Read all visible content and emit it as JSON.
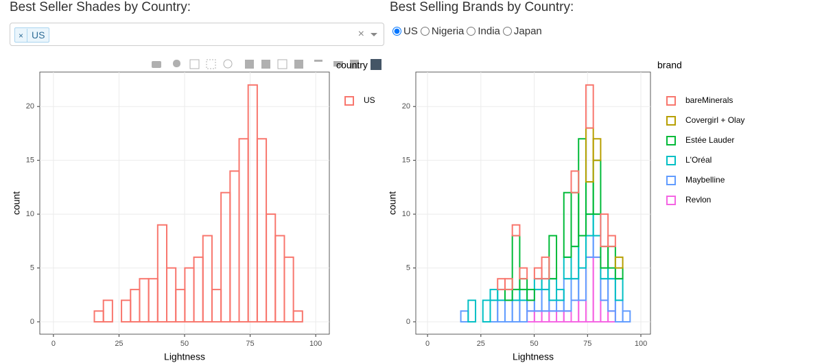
{
  "left_panel": {
    "title": "Best Seller Shades by Country:",
    "selected": [
      "US"
    ]
  },
  "right_panel": {
    "title": "Best Selling Brands by Country:",
    "options": [
      "US",
      "Nigeria",
      "India",
      "Japan"
    ],
    "selected": "US"
  },
  "chart_data": [
    {
      "type": "histogram",
      "x_label": "Lightness",
      "y_label": "count",
      "legend_title": "country",
      "bins": [
        1.8,
        5.25,
        8.7,
        12.15,
        15.6,
        19.05,
        22.5,
        25.95,
        29.4,
        32.85,
        36.3,
        39.75,
        43.2,
        46.65,
        50.1,
        53.55,
        57,
        60.45,
        63.9,
        67.35,
        70.8,
        74.25,
        77.7,
        81.15,
        84.6,
        88.05,
        91.5,
        94.95,
        98.4
      ],
      "series": [
        {
          "name": "US",
          "color": "#F8766D",
          "values": [
            0,
            0,
            0,
            0,
            1,
            2,
            0,
            2,
            3,
            4,
            4,
            9,
            5,
            3,
            5,
            6,
            8,
            3,
            12,
            14,
            17,
            22,
            17,
            10,
            8,
            6,
            1,
            0
          ]
        }
      ],
      "xlim": [
        -5.2,
        105.2
      ],
      "ylim": [
        -1.15,
        23.2
      ],
      "xticks": [
        0,
        25,
        50,
        75,
        100
      ],
      "yticks": [
        0,
        5,
        10,
        15,
        20
      ],
      "grid": true
    },
    {
      "type": "histogram",
      "stacked": true,
      "x_label": "Lightness",
      "y_label": "count",
      "legend_title": "brand",
      "bins": [
        1.8,
        5.25,
        8.7,
        12.15,
        15.6,
        19.05,
        22.5,
        25.95,
        29.4,
        32.85,
        36.3,
        39.75,
        43.2,
        46.65,
        50.1,
        53.55,
        57,
        60.45,
        63.9,
        67.35,
        70.8,
        74.25,
        77.7,
        81.15,
        84.6,
        88.05,
        91.5,
        94.95,
        98.4
      ],
      "series": [
        {
          "name": "Revlon",
          "color": "#F564E3",
          "values": [
            0,
            0,
            0,
            0,
            0,
            0,
            0,
            0,
            0,
            0,
            0,
            0,
            0,
            1,
            1,
            1,
            1,
            1,
            1,
            2,
            2,
            6,
            6,
            2,
            1,
            0,
            0,
            0
          ]
        },
        {
          "name": "Maybelline",
          "color": "#619CFF",
          "values": [
            0,
            0,
            0,
            0,
            1,
            0,
            0,
            0,
            2,
            2,
            2,
            2,
            2,
            1,
            2,
            2,
            1,
            1,
            3,
            2,
            3,
            2,
            2,
            2,
            3,
            2,
            1,
            0
          ]
        },
        {
          "name": "L'Oréal",
          "color": "#00BFC4",
          "values": [
            0,
            0,
            0,
            0,
            0,
            2,
            0,
            2,
            1,
            1,
            0,
            1,
            1,
            0,
            1,
            1,
            2,
            1,
            2,
            3,
            3,
            2,
            2,
            1,
            1,
            2,
            0,
            0
          ]
        },
        {
          "name": "Estée Lauder",
          "color": "#00BA38",
          "values": [
            0,
            0,
            0,
            0,
            0,
            0,
            0,
            0,
            0,
            0,
            1,
            5,
            1,
            1,
            0,
            0,
            4,
            0,
            6,
            5,
            9,
            3,
            5,
            2,
            2,
            1,
            0,
            0
          ]
        },
        {
          "name": "Covergirl + Olay",
          "color": "#B79F00",
          "values": [
            0,
            0,
            0,
            0,
            0,
            0,
            0,
            0,
            0,
            0,
            0,
            0,
            0,
            0,
            0,
            0,
            0,
            0,
            0,
            0,
            0,
            5,
            2,
            0,
            0,
            1,
            0,
            0
          ]
        },
        {
          "name": "bareMinerals",
          "color": "#F8766D",
          "values": [
            0,
            0,
            0,
            0,
            0,
            0,
            0,
            0,
            0,
            1,
            1,
            1,
            1,
            0,
            1,
            2,
            0,
            0,
            0,
            2,
            0,
            4,
            0,
            3,
            1,
            0,
            0,
            0
          ]
        }
      ],
      "legend_order": [
        "bareMinerals",
        "Covergirl + Olay",
        "Estée Lauder",
        "L'Oréal",
        "Maybelline",
        "Revlon"
      ],
      "xlim": [
        -5.5,
        104.5
      ],
      "ylim": [
        -1.15,
        23.2
      ],
      "xticks": [
        0,
        25,
        50,
        75,
        100
      ],
      "yticks": [
        0,
        5,
        10,
        15,
        20
      ],
      "grid": true
    }
  ]
}
